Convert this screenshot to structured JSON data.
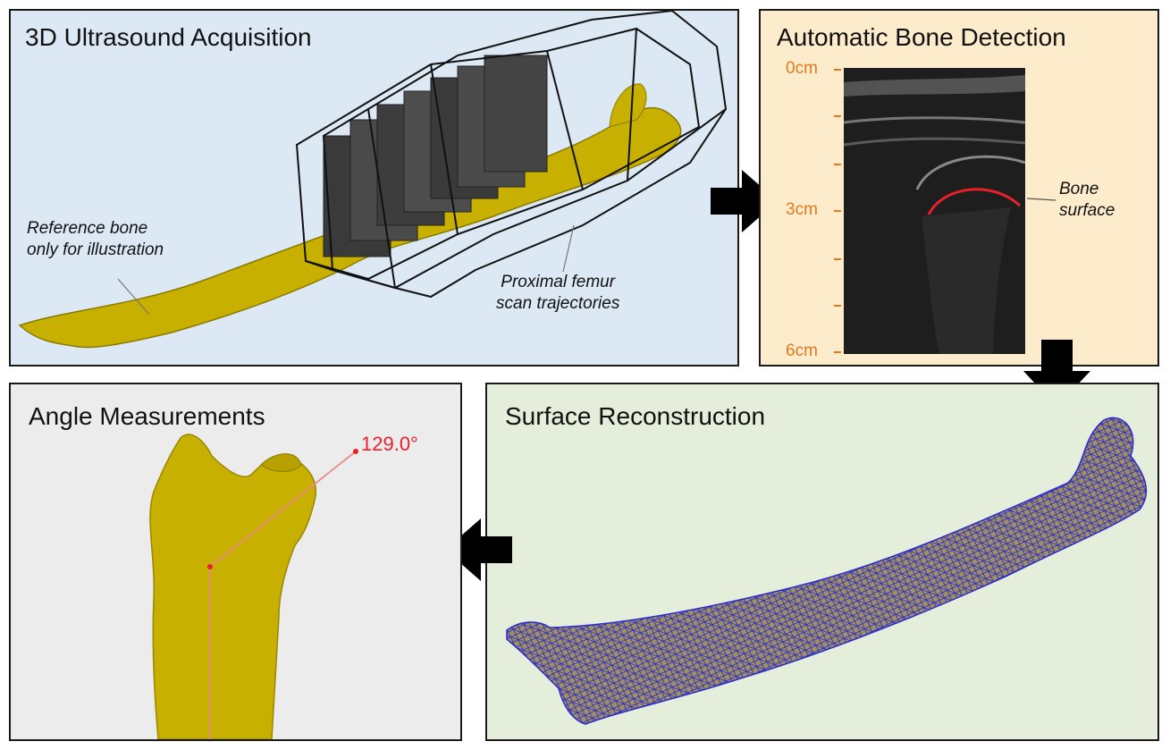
{
  "panels": {
    "acquisition": {
      "title": "3D Ultrasound Acquisition",
      "bg": "#dce8f4",
      "annotations": {
        "reference": [
          "Reference bone",
          "only for illustration"
        ],
        "trajectories": [
          "Proximal femur",
          "scan trajectories"
        ]
      }
    },
    "detection": {
      "title": "Automatic Bone Detection",
      "bg": "#fdeccc",
      "depth_labels": [
        "0cm",
        "3cm",
        "6cm"
      ],
      "annotation": [
        "Bone",
        "surface"
      ]
    },
    "reconstruction": {
      "title": "Surface Reconstruction",
      "bg": "#e4eeda"
    },
    "angle": {
      "title": "Angle Measurements",
      "bg": "#ececec",
      "value": "129.0°"
    }
  },
  "colors": {
    "bone": "#c8b000",
    "mesh": "#2a2ad0",
    "accent_orange": "#e07a1f",
    "detection_red": "#e8202a"
  }
}
